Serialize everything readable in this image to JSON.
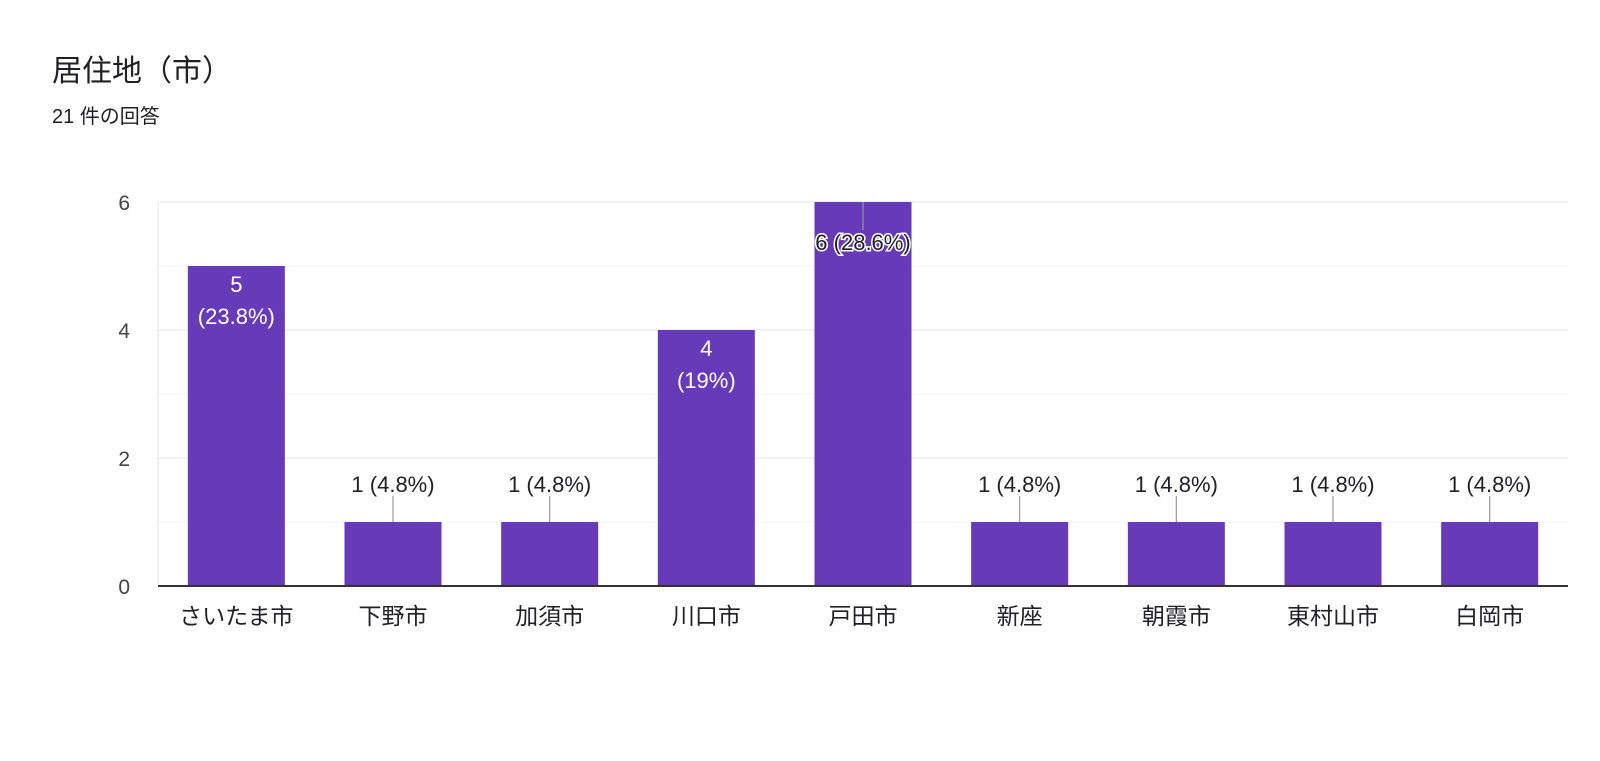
{
  "header": {
    "title": "居住地（市）",
    "subtitle": "21 件の回答"
  },
  "colors": {
    "bar": "#673ab7",
    "axis": "#333333",
    "grid_major": "#e6e6e6",
    "grid_minor": "#f3f3f3",
    "label_outside": "#202124",
    "label_inside": "#ffffff",
    "tick_text": "#444444",
    "leader_line": "#999999"
  },
  "chart_data": {
    "type": "bar",
    "categories": [
      "さいたま市",
      "下野市",
      "加須市",
      "川口市",
      "戸田市",
      "新座",
      "朝霞市",
      "東村山市",
      "白岡市"
    ],
    "values": [
      5,
      1,
      1,
      4,
      6,
      1,
      1,
      1,
      1
    ],
    "data_labels": [
      "5 (23.8%)",
      "1 (4.8%)",
      "1 (4.8%)",
      "4 (19%)",
      "6 (28.6%)",
      "1 (4.8%)",
      "1 (4.8%)",
      "1 (4.8%)",
      "1 (4.8%)"
    ],
    "ylim": [
      0,
      6
    ],
    "yticks": [
      "0",
      "2",
      "4",
      "6"
    ],
    "grid": true
  }
}
